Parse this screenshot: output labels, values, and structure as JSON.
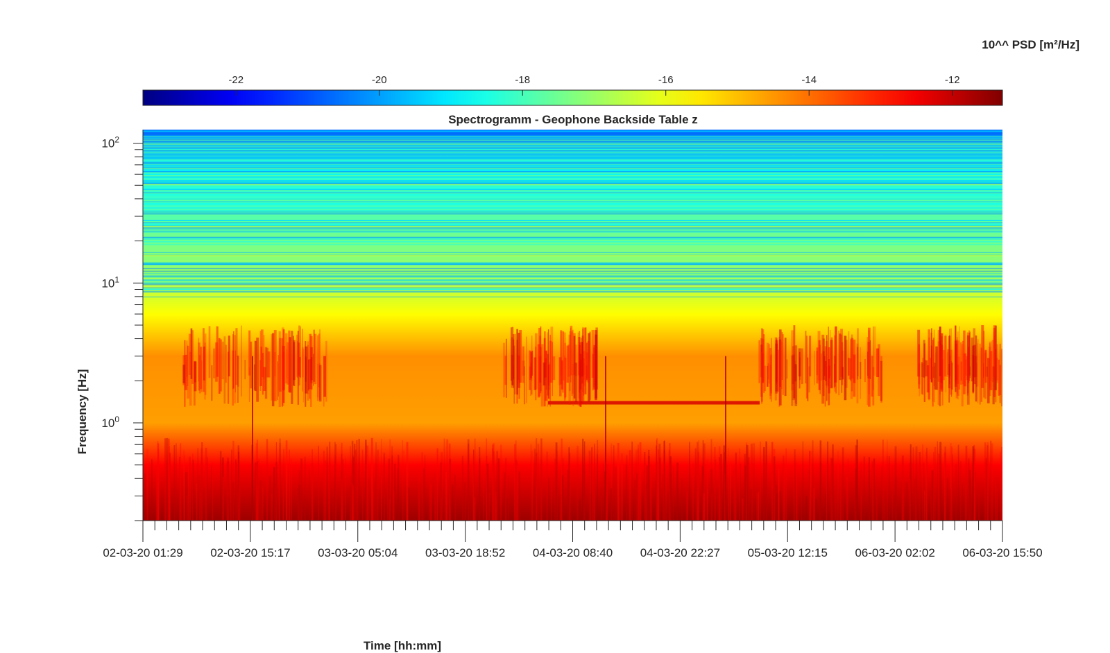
{
  "chart_data": {
    "type": "heatmap",
    "title": "Spectrogramm - Geophone Backside Table z",
    "xlabel": "Time [hh:mm]",
    "ylabel": "Frequency [Hz]",
    "colorbar": {
      "label": "10^^ PSD [m²/Hz]",
      "range": [
        -23.3,
        -11.3
      ],
      "ticks": [
        "-22",
        "-20",
        "-18",
        "-16",
        "-14",
        "-12"
      ],
      "tick_values": [
        -22,
        -20,
        -18,
        -16,
        -14,
        -12
      ],
      "colormap": "jet",
      "position": "top"
    },
    "x_ticks": [
      "02-03-20 01:29",
      "02-03-20 15:17",
      "03-03-20 05:04",
      "03-03-20 18:52",
      "04-03-20 08:40",
      "04-03-20 22:27",
      "05-03-20 12:15",
      "06-03-20 02:02",
      "06-03-20 15:50"
    ],
    "x_range": [
      "02-03-20 01:29",
      "06-03-20 15:50"
    ],
    "y_scale": "log",
    "y_range": [
      0.2,
      125
    ],
    "y_ticks": [
      {
        "value": 1,
        "base": "10",
        "exp": "0"
      },
      {
        "value": 10,
        "base": "10",
        "exp": "1"
      },
      {
        "value": 100,
        "base": "10",
        "exp": "2"
      }
    ],
    "features": {
      "bands_by_frequency_hz": [
        {
          "f": 0.2,
          "level": -11.6
        },
        {
          "f": 0.5,
          "level": -12.6
        },
        {
          "f": 1.0,
          "level": -14.6
        },
        {
          "f": 3.0,
          "level": -14.4
        },
        {
          "f": 6.0,
          "level": -15.8
        },
        {
          "f": 12.0,
          "level": -17.0
        },
        {
          "f": 25.0,
          "level": -17.6
        },
        {
          "f": 60.0,
          "level": -18.6
        },
        {
          "f": 125.0,
          "level": -20.8
        }
      ],
      "harmonic_lines_hz": [
        1.4,
        15.5,
        25,
        50
      ]
    }
  },
  "colors": {
    "jet": [
      "#000080",
      "#0000ff",
      "#00ffff",
      "#ffff00",
      "#ff0000",
      "#800000"
    ],
    "axis": "#262626"
  }
}
